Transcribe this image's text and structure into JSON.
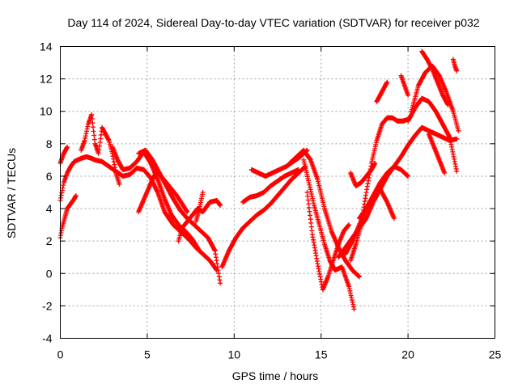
{
  "chart_data": {
    "type": "scatter",
    "title": "Day 114 of 2024, Sidereal Day-to-day VTEC variation (SDTVAR) for receiver p032",
    "xlabel": "GPS time / hours",
    "ylabel": "SDTVAR / TECUs",
    "xlim": [
      0,
      25
    ],
    "ylim": [
      -4,
      14
    ],
    "x_ticks": [
      0,
      5,
      10,
      15,
      20,
      25
    ],
    "x_tick_labels": [
      "0",
      "5",
      "10",
      "15",
      "20",
      "25"
    ],
    "y_ticks": [
      -4,
      -2,
      0,
      2,
      4,
      6,
      8,
      10,
      12,
      14
    ],
    "y_tick_labels": [
      "-4",
      "-2",
      "0",
      "2",
      "4",
      "6",
      "8",
      "10",
      "12",
      "14"
    ],
    "grid": true,
    "marker": "plus",
    "color": "#ff0000",
    "series": [
      {
        "x": [
          0.0,
          0.2,
          0.4,
          0.6,
          0.8,
          1.0,
          1.2,
          1.5,
          1.8,
          2.0,
          2.4,
          2.8,
          3.2,
          3.6,
          4.0,
          4.4,
          4.8,
          5.2,
          5.6,
          6.0,
          6.5,
          7.0,
          7.4,
          7.8,
          8.2,
          8.6,
          9.0
        ],
        "y": [
          4.5,
          5.6,
          6.2,
          6.6,
          6.9,
          7.0,
          7.1,
          7.2,
          7.1,
          7.0,
          6.9,
          6.6,
          6.3,
          6.0,
          6.1,
          6.5,
          6.4,
          5.9,
          5.0,
          3.8,
          3.0,
          2.5,
          2.1,
          1.6,
          1.2,
          0.8,
          0.2
        ]
      },
      {
        "x": [
          0.0,
          0.1,
          0.2,
          0.3,
          0.4
        ],
        "y": [
          6.8,
          7.1,
          7.4,
          7.6,
          7.8
        ]
      },
      {
        "x": [
          0.0,
          0.1,
          0.2,
          0.3,
          0.4,
          0.6,
          0.8,
          0.9
        ],
        "y": [
          2.2,
          2.8,
          3.2,
          3.6,
          4.0,
          4.3,
          4.6,
          4.8
        ]
      },
      {
        "x": [
          1.2,
          1.4,
          1.6,
          1.8,
          2.0,
          2.2,
          2.4,
          2.6,
          2.8,
          3.0,
          3.2,
          3.4
        ],
        "y": [
          7.6,
          8.2,
          9.2,
          9.8,
          8.0,
          7.4,
          9.0,
          8.6,
          8.2,
          7.4,
          6.2,
          5.5
        ]
      },
      {
        "x": [
          3.0,
          3.3,
          3.6,
          4.0,
          4.4,
          4.8,
          5.2,
          5.6,
          6.0,
          6.4,
          6.8,
          7.2,
          7.6,
          8.0
        ],
        "y": [
          7.8,
          7.0,
          6.4,
          6.5,
          6.9,
          7.5,
          6.8,
          5.8,
          4.6,
          3.6,
          3.0,
          2.6,
          2.1,
          1.4
        ]
      },
      {
        "x": [
          4.5,
          4.9,
          5.3,
          5.7,
          6.1,
          6.5,
          6.9,
          7.3,
          7.7,
          8.1,
          8.5,
          8.9,
          9.2
        ],
        "y": [
          7.4,
          7.6,
          7.0,
          6.2,
          5.4,
          4.6,
          3.9,
          3.4,
          3.0,
          2.6,
          2.2,
          1.4,
          -0.6
        ]
      },
      {
        "x": [
          4.5,
          4.7,
          4.9,
          5.1,
          5.3,
          5.5
        ],
        "y": [
          3.8,
          4.3,
          4.8,
          5.3,
          5.8,
          6.2
        ]
      },
      {
        "x": [
          5.5,
          5.8,
          6.1,
          6.4,
          6.7,
          7.0,
          7.3
        ],
        "y": [
          6.4,
          6.0,
          5.6,
          5.2,
          4.8,
          4.3,
          3.8
        ]
      },
      {
        "x": [
          6.8,
          7.0,
          7.3,
          7.6,
          7.9,
          8.2,
          8.6,
          9.0,
          9.2
        ],
        "y": [
          2.0,
          2.8,
          3.2,
          3.6,
          4.0,
          3.8,
          4.4,
          4.5,
          4.2
        ]
      },
      {
        "x": [
          7.8,
          7.9,
          8.0,
          8.1,
          8.2
        ],
        "y": [
          3.2,
          3.6,
          4.0,
          4.5,
          5.0
        ]
      },
      {
        "x": [
          9.3,
          9.7,
          10.1,
          10.5,
          10.9,
          11.3,
          11.7,
          12.1,
          12.5,
          12.9,
          13.3,
          13.7,
          14.1
        ],
        "y": [
          0.4,
          1.4,
          2.2,
          2.8,
          3.2,
          3.6,
          3.9,
          4.3,
          4.8,
          5.3,
          5.8,
          6.2,
          6.6
        ]
      },
      {
        "x": [
          10.5,
          10.9,
          11.3,
          11.7,
          12.1,
          12.5,
          12.9,
          13.3,
          13.7
        ],
        "y": [
          4.4,
          4.7,
          4.8,
          5.0,
          5.4,
          5.7,
          6.0,
          6.2,
          6.4
        ]
      },
      {
        "x": [
          11.0,
          11.4,
          11.8,
          12.2,
          12.6,
          13.0,
          13.4,
          13.8,
          14.2
        ],
        "y": [
          6.4,
          6.2,
          6.0,
          6.2,
          6.4,
          6.6,
          6.9,
          7.2,
          7.6
        ]
      },
      {
        "x": [
          13.2,
          13.6,
          14.0,
          14.4,
          14.8,
          15.2,
          15.6,
          16.0,
          16.4,
          16.8,
          17.2
        ],
        "y": [
          6.8,
          7.2,
          7.6,
          7.0,
          5.8,
          4.0,
          2.6,
          1.6,
          0.8,
          0.2,
          -0.2
        ]
      },
      {
        "x": [
          14.0,
          14.3,
          14.6,
          14.9,
          15.2,
          15.5,
          15.8,
          16.2,
          16.6,
          16.9
        ],
        "y": [
          7.0,
          5.6,
          4.2,
          3.0,
          1.8,
          0.8,
          0.2,
          0.4,
          -0.8,
          -2.2
        ]
      },
      {
        "x": [
          14.2,
          14.5,
          14.8,
          15.1,
          15.4,
          15.7,
          16.0,
          16.3,
          16.6
        ],
        "y": [
          5.0,
          2.4,
          0.6,
          -1.0,
          -0.2,
          0.8,
          1.8,
          2.6,
          3.0
        ]
      },
      {
        "x": [
          16.7,
          17.0,
          17.3,
          17.6,
          17.9,
          18.2,
          18.5,
          18.8,
          19.1,
          19.4,
          19.7,
          20.0
        ],
        "y": [
          0.8,
          1.8,
          3.0,
          5.0,
          6.8,
          8.2,
          9.2,
          9.6,
          9.6,
          9.4,
          9.4,
          9.5
        ]
      },
      {
        "x": [
          16.7,
          17.0,
          17.3,
          17.6,
          17.9,
          18.1
        ],
        "y": [
          6.2,
          5.4,
          5.6,
          6.0,
          6.4,
          6.8
        ]
      },
      {
        "x": [
          16.0,
          16.4,
          16.8,
          17.2,
          17.6,
          18.0,
          18.4,
          18.8,
          19.2,
          19.6,
          20.0,
          20.4,
          20.8,
          21.2,
          21.6,
          22.0,
          22.4,
          22.8
        ],
        "y": [
          1.0,
          1.6,
          2.2,
          2.8,
          3.4,
          4.4,
          5.2,
          6.0,
          6.6,
          7.2,
          7.9,
          8.5,
          9.0,
          8.8,
          8.6,
          8.4,
          8.2,
          8.3
        ]
      },
      {
        "x": [
          16.4,
          16.8,
          17.2,
          17.6,
          18.0,
          18.4,
          18.8,
          19.2,
          19.6,
          20.0
        ],
        "y": [
          1.2,
          2.0,
          3.0,
          4.0,
          4.8,
          5.6,
          6.2,
          6.6,
          6.4,
          6.0
        ]
      },
      {
        "x": [
          17.2,
          17.6,
          18.0,
          18.4,
          18.8,
          19.2
        ],
        "y": [
          3.4,
          4.0,
          4.8,
          5.2,
          4.4,
          3.4
        ]
      },
      {
        "x": [
          18.2,
          18.5,
          18.8
        ],
        "y": [
          10.6,
          11.2,
          11.8
        ]
      },
      {
        "x": [
          19.6,
          19.8,
          20.0
        ],
        "y": [
          12.2,
          11.6,
          11.0
        ]
      },
      {
        "x": [
          20.0,
          20.4,
          20.8,
          21.2,
          21.6,
          22.0,
          22.4,
          22.8
        ],
        "y": [
          9.4,
          10.2,
          10.8,
          10.6,
          10.0,
          9.2,
          8.4,
          6.3
        ]
      },
      {
        "x": [
          20.2,
          20.6,
          21.0,
          21.4,
          21.8,
          22.2,
          22.6,
          22.9
        ],
        "y": [
          10.0,
          11.6,
          12.4,
          12.8,
          12.2,
          11.2,
          10.0,
          8.8
        ]
      },
      {
        "x": [
          20.8,
          21.1,
          21.4,
          21.7,
          22.0,
          22.3
        ],
        "y": [
          13.7,
          13.2,
          12.6,
          11.8,
          11.0,
          10.4
        ]
      },
      {
        "x": [
          21.2,
          21.5,
          21.8,
          22.1
        ],
        "y": [
          8.6,
          7.8,
          7.0,
          6.2
        ]
      },
      {
        "x": [
          22.6,
          22.7,
          22.8
        ],
        "y": [
          13.2,
          12.8,
          12.5
        ]
      }
    ]
  }
}
